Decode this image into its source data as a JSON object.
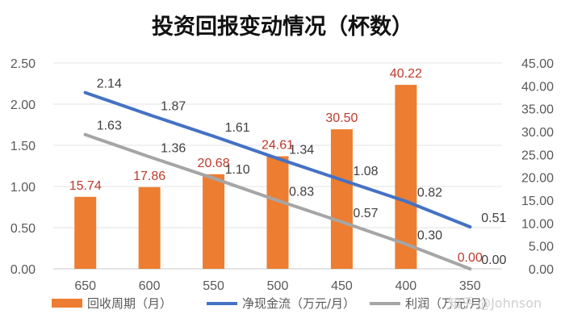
{
  "chart_data": {
    "type": "bar+line",
    "title": "投资回报变动情况（杯数）",
    "categories": [
      "650",
      "600",
      "550",
      "500",
      "450",
      "400",
      "350"
    ],
    "left_axis": {
      "min": 0,
      "max": 2.5,
      "step": 0.5,
      "ticks": [
        "0.00",
        "0.50",
        "1.00",
        "1.50",
        "2.00",
        "2.50"
      ]
    },
    "right_axis": {
      "min": 0,
      "max": 45,
      "step": 5,
      "ticks": [
        "0.00",
        "5.00",
        "10.00",
        "15.00",
        "20.00",
        "25.00",
        "30.00",
        "35.00",
        "40.00",
        "45.00"
      ]
    },
    "series": [
      {
        "name": "回收周期（月）",
        "type": "bar",
        "axis": "right",
        "color": "#ED7D31",
        "label_color": "#C0392B",
        "values": [
          15.74,
          17.86,
          20.68,
          24.61,
          30.5,
          40.22,
          0.0
        ],
        "labels": [
          "15.74",
          "17.86",
          "20.68",
          "24.61",
          "30.50",
          "40.22",
          "0.00"
        ]
      },
      {
        "name": "净现金流（万元/月）",
        "type": "line",
        "axis": "left",
        "color": "#4472C4",
        "label_color": "#404040",
        "values": [
          2.14,
          1.87,
          1.61,
          1.34,
          1.08,
          0.82,
          0.51
        ],
        "labels": [
          "2.14",
          "1.87",
          "1.61",
          "1.34",
          "1.08",
          "0.82",
          "0.51"
        ]
      },
      {
        "name": "利润（万元/月）",
        "type": "line",
        "axis": "left",
        "color": "#A5A5A5",
        "label_color": "#404040",
        "values": [
          1.63,
          1.36,
          1.1,
          0.83,
          0.57,
          0.3,
          0.0
        ],
        "labels": [
          "1.63",
          "1.36",
          "1.10",
          "0.83",
          "0.57",
          "0.30",
          "0.00"
        ]
      }
    ],
    "grid": true,
    "legend_position": "bottom"
  },
  "watermark": "知乎 @Johnson"
}
